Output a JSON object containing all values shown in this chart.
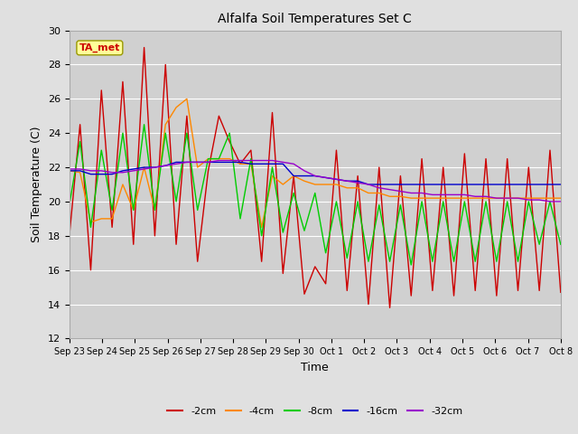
{
  "title": "Alfalfa Soil Temperatures Set C",
  "xlabel": "Time",
  "ylabel": "Soil Temperature (C)",
  "ylim": [
    12,
    30
  ],
  "yticks": [
    12,
    14,
    16,
    18,
    20,
    22,
    24,
    26,
    28,
    30
  ],
  "legend_label": "TA_met",
  "line_colors": {
    "-2cm": "#cc0000",
    "-4cm": "#ff8800",
    "-8cm": "#00cc00",
    "-16cm": "#0000cc",
    "-32cm": "#9900cc"
  },
  "xtick_labels": [
    "Sep 23",
    "Sep 24",
    "Sep 25",
    "Sep 26",
    "Sep 27",
    "Sep 28",
    "Sep 29",
    "Sep 30",
    "Oct 1",
    "Oct 2",
    "Oct 3",
    "Oct 4",
    "Oct 5",
    "Oct 6",
    "Oct 7",
    "Oct 8"
  ],
  "neg2cm": [
    18.0,
    24.5,
    16.0,
    26.5,
    18.5,
    27.0,
    17.5,
    29.0,
    18.0,
    28.0,
    17.5,
    25.0,
    16.5,
    21.8,
    25.0,
    23.5,
    22.2,
    23.0,
    16.5,
    25.2,
    15.8,
    21.5,
    14.6,
    16.2,
    15.2,
    23.0,
    14.8,
    21.5,
    14.0,
    22.0,
    13.8,
    21.5,
    14.5,
    22.5,
    14.8,
    22.0,
    14.5,
    22.8,
    14.8,
    22.5,
    14.5,
    22.5,
    14.8,
    22.0,
    14.8,
    23.0,
    14.7
  ],
  "neg4cm": [
    21.8,
    21.7,
    18.8,
    19.0,
    19.0,
    21.0,
    19.5,
    22.0,
    19.5,
    24.5,
    25.5,
    26.0,
    22.0,
    22.5,
    22.5,
    22.5,
    22.2,
    22.2,
    18.5,
    21.5,
    21.0,
    21.5,
    21.2,
    21.0,
    21.0,
    21.0,
    20.8,
    20.8,
    20.5,
    20.5,
    20.3,
    20.3,
    20.2,
    20.2,
    20.2,
    20.2,
    20.2,
    20.2,
    20.2,
    20.2,
    20.2,
    20.2,
    20.2,
    20.2,
    20.2,
    20.2,
    20.2
  ],
  "neg8cm": [
    19.8,
    23.5,
    18.5,
    23.0,
    19.5,
    24.0,
    19.5,
    24.5,
    19.5,
    24.0,
    20.0,
    24.0,
    19.5,
    22.5,
    22.5,
    24.0,
    19.0,
    22.5,
    18.0,
    22.0,
    18.2,
    20.5,
    18.3,
    20.5,
    17.0,
    20.0,
    16.7,
    20.0,
    16.5,
    19.8,
    16.5,
    19.8,
    16.3,
    20.0,
    16.5,
    20.0,
    16.5,
    20.0,
    16.5,
    20.0,
    16.5,
    20.0,
    16.5,
    20.0,
    17.5,
    20.0,
    17.5
  ],
  "neg16cm": [
    21.8,
    21.8,
    21.6,
    21.6,
    21.6,
    21.8,
    21.9,
    22.0,
    22.0,
    22.1,
    22.3,
    22.3,
    22.3,
    22.3,
    22.3,
    22.3,
    22.3,
    22.2,
    22.2,
    22.2,
    22.2,
    21.5,
    21.5,
    21.5,
    21.4,
    21.3,
    21.2,
    21.2,
    21.0,
    21.0,
    21.0,
    21.0,
    21.0,
    21.0,
    21.0,
    21.0,
    21.0,
    21.0,
    21.0,
    21.0,
    21.0,
    21.0,
    21.0,
    21.0,
    21.0,
    21.0,
    21.0
  ],
  "neg32cm": [
    21.9,
    21.9,
    21.8,
    21.8,
    21.7,
    21.7,
    21.8,
    21.9,
    22.0,
    22.1,
    22.2,
    22.3,
    22.3,
    22.3,
    22.4,
    22.4,
    22.4,
    22.4,
    22.4,
    22.4,
    22.3,
    22.2,
    21.8,
    21.5,
    21.4,
    21.3,
    21.2,
    21.1,
    21.0,
    20.8,
    20.7,
    20.6,
    20.5,
    20.5,
    20.4,
    20.4,
    20.4,
    20.4,
    20.3,
    20.3,
    20.2,
    20.2,
    20.2,
    20.1,
    20.1,
    20.0,
    20.0
  ],
  "figsize": [
    6.4,
    4.8
  ],
  "dpi": 100
}
